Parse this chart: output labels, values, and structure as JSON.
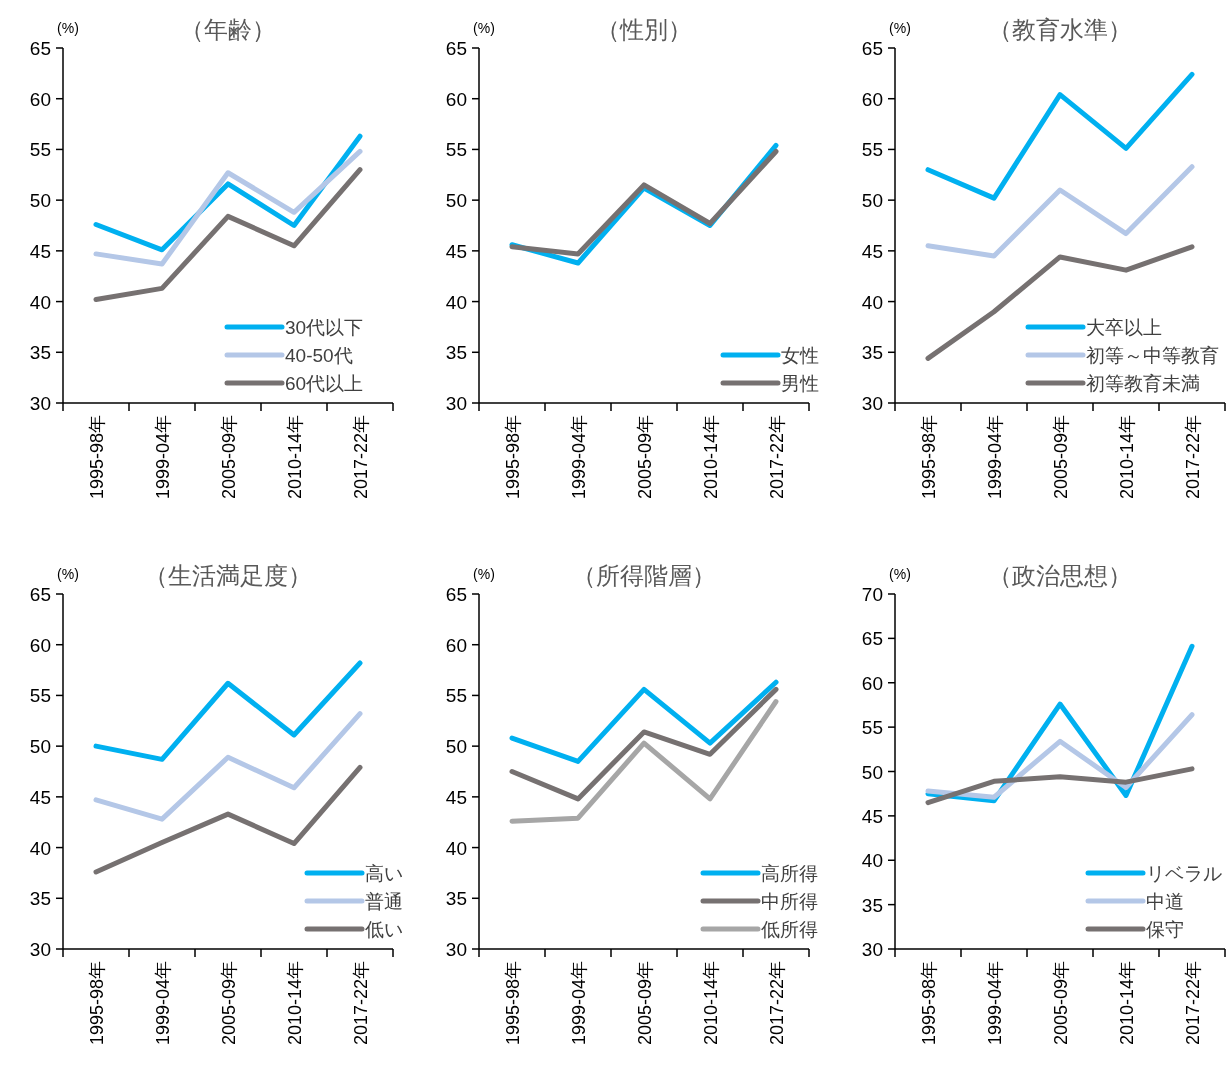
{
  "chart_data": [
    {
      "type": "line",
      "title": "（年齢）",
      "ylabel": "(%)",
      "categories": [
        "1995-98年",
        "1999-04年",
        "2005-09年",
        "2010-14年",
        "2017-22年"
      ],
      "ylim": [
        30,
        65
      ],
      "yticks": [
        30,
        35,
        40,
        45,
        50,
        55,
        60,
        65
      ],
      "legend": "bottom right",
      "series": [
        {
          "name": "30代以下",
          "color": "#00b0f0",
          "values": [
            47.6,
            45.1,
            51.6,
            47.5,
            56.3
          ]
        },
        {
          "name": "40-50代",
          "color": "#b4c7e7",
          "values": [
            44.7,
            43.7,
            52.7,
            48.8,
            54.8
          ]
        },
        {
          "name": "60代以上",
          "color": "#767171",
          "values": [
            40.2,
            41.3,
            48.4,
            45.5,
            53.0
          ]
        }
      ]
    },
    {
      "type": "line",
      "title": "（性別）",
      "ylabel": "(%)",
      "categories": [
        "1995-98年",
        "1999-04年",
        "2005-09年",
        "2010-14年",
        "2017-22年"
      ],
      "ylim": [
        30,
        65
      ],
      "yticks": [
        30,
        35,
        40,
        45,
        50,
        55,
        60,
        65
      ],
      "legend": "bottom right",
      "series": [
        {
          "name": "女性",
          "color": "#00b0f0",
          "values": [
            45.6,
            43.8,
            51.2,
            47.5,
            55.4
          ]
        },
        {
          "name": "男性",
          "color": "#767171",
          "values": [
            45.4,
            44.7,
            51.5,
            47.7,
            54.8
          ]
        }
      ]
    },
    {
      "type": "line",
      "title": "（教育水準）",
      "ylabel": "(%)",
      "categories": [
        "1995-98年",
        "1999-04年",
        "2005-09年",
        "2010-14年",
        "2017-22年"
      ],
      "ylim": [
        30,
        65
      ],
      "yticks": [
        30,
        35,
        40,
        45,
        50,
        55,
        60,
        65
      ],
      "legend": "bottom right",
      "series": [
        {
          "name": "大卒以上",
          "color": "#00b0f0",
          "values": [
            53.0,
            50.2,
            60.4,
            55.1,
            62.4
          ]
        },
        {
          "name": "初等～中等教育",
          "color": "#b4c7e7",
          "values": [
            45.5,
            44.5,
            51.0,
            46.7,
            53.3
          ]
        },
        {
          "name": "初等教育未満",
          "color": "#767171",
          "values": [
            34.4,
            39.0,
            44.4,
            43.1,
            45.4
          ]
        }
      ]
    },
    {
      "type": "line",
      "title": "（生活満足度）",
      "ylabel": "(%)",
      "categories": [
        "1995-98年",
        "1999-04年",
        "2005-09年",
        "2010-14年",
        "2017-22年"
      ],
      "ylim": [
        30,
        65
      ],
      "yticks": [
        30,
        35,
        40,
        45,
        50,
        55,
        60,
        65
      ],
      "legend": "bottom right",
      "series": [
        {
          "name": "高い",
          "color": "#00b0f0",
          "values": [
            50.0,
            48.7,
            56.2,
            51.1,
            58.2
          ]
        },
        {
          "name": "普通",
          "color": "#b4c7e7",
          "values": [
            44.7,
            42.8,
            48.9,
            45.9,
            53.2
          ]
        },
        {
          "name": "低い",
          "color": "#767171",
          "values": [
            37.6,
            40.5,
            43.3,
            40.4,
            47.9
          ]
        }
      ]
    },
    {
      "type": "line",
      "title": "（所得階層）",
      "ylabel": "(%)",
      "categories": [
        "1995-98年",
        "1999-04年",
        "2005-09年",
        "2010-14年",
        "2017-22年"
      ],
      "ylim": [
        30,
        65
      ],
      "yticks": [
        30,
        35,
        40,
        45,
        50,
        55,
        60,
        65
      ],
      "legend": "bottom right",
      "series": [
        {
          "name": "高所得",
          "color": "#00b0f0",
          "values": [
            50.8,
            48.5,
            55.6,
            50.3,
            56.3
          ]
        },
        {
          "name": "中所得",
          "color": "#767171",
          "values": [
            47.5,
            44.8,
            51.4,
            49.2,
            55.6
          ]
        },
        {
          "name": "低所得",
          "color": "#a6a6a6",
          "values": [
            42.6,
            42.9,
            50.3,
            44.8,
            54.4
          ]
        }
      ]
    },
    {
      "type": "line",
      "title": "（政治思想）",
      "ylabel": "(%)",
      "categories": [
        "1995-98年",
        "1999-04年",
        "2005-09年",
        "2010-14年",
        "2017-22年"
      ],
      "ylim": [
        30,
        70
      ],
      "yticks": [
        30,
        35,
        40,
        45,
        50,
        55,
        60,
        65,
        70
      ],
      "legend": "bottom right",
      "series": [
        {
          "name": "リベラル",
          "color": "#00b0f0",
          "values": [
            47.5,
            46.7,
            57.6,
            47.3,
            64.1
          ]
        },
        {
          "name": "中道",
          "color": "#b4c7e7",
          "values": [
            47.8,
            47.1,
            53.4,
            48.2,
            56.4
          ]
        },
        {
          "name": "保守",
          "color": "#767171",
          "values": [
            46.5,
            48.9,
            49.4,
            48.8,
            50.3
          ]
        }
      ]
    }
  ]
}
